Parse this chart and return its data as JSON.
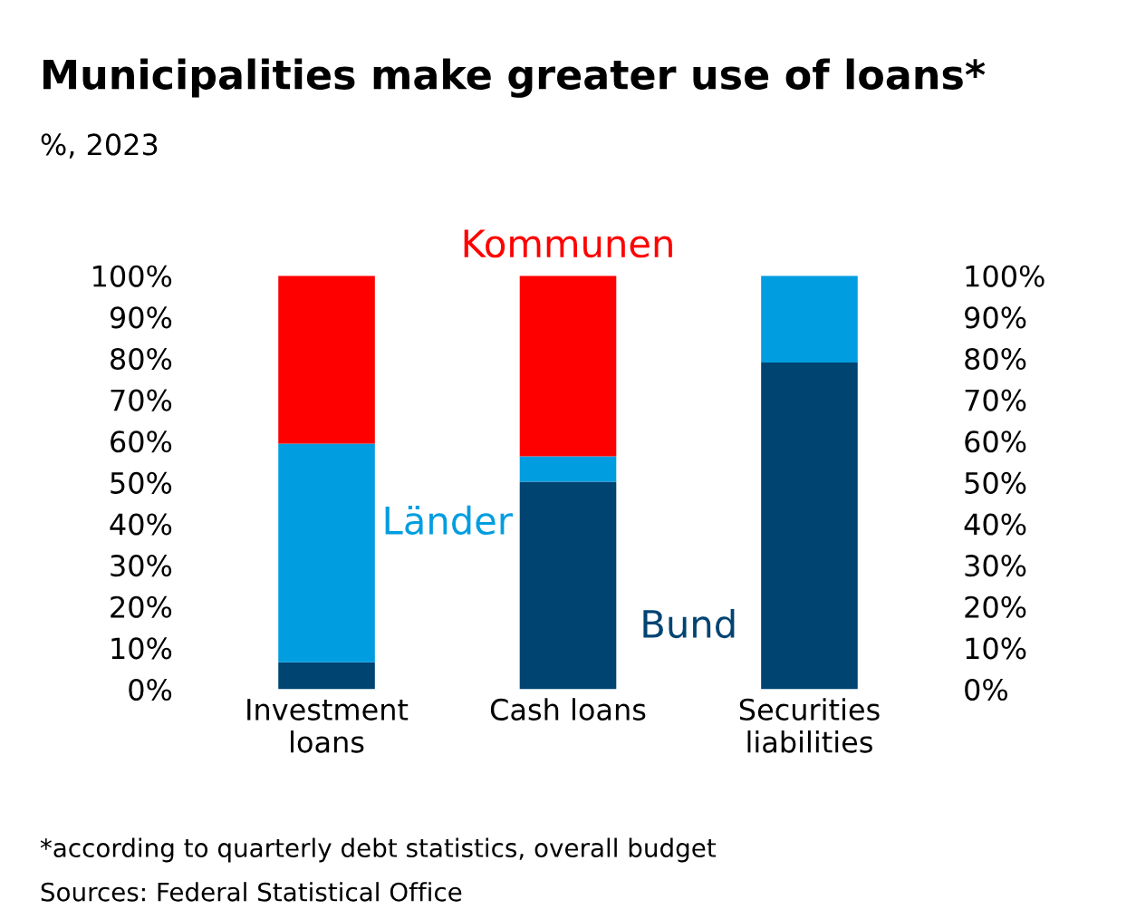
{
  "chart_data": {
    "type": "bar",
    "title": "Municipalities make greater use of loans*",
    "subtitle": "%, 2023",
    "categories": [
      "Investment\nloans",
      "Cash loans",
      "Securities\nliabilities"
    ],
    "stacked": true,
    "series": [
      {
        "name": "Bund",
        "color": "#004472",
        "values": [
          6.5,
          50.2,
          79
        ]
      },
      {
        "name": "Länder",
        "color": "#009de0",
        "values": [
          52.9,
          6.1,
          21
        ]
      },
      {
        "name": "Kommunen",
        "color": "#ff0000",
        "values": [
          40.6,
          43.7,
          0
        ]
      }
    ],
    "ylim": [
      0,
      100
    ],
    "yticks": [
      {
        "value": 0,
        "label": "0%"
      },
      {
        "value": 10,
        "label": "10%"
      },
      {
        "value": 20,
        "label": "20%"
      },
      {
        "value": 30,
        "label": "30%"
      },
      {
        "value": 40,
        "label": "40%"
      },
      {
        "value": 50,
        "label": "50%"
      },
      {
        "value": 60,
        "label": "60%"
      },
      {
        "value": 70,
        "label": "70%"
      },
      {
        "value": 80,
        "label": "80%"
      },
      {
        "value": 90,
        "label": "90%"
      },
      {
        "value": 100,
        "label": "100%"
      }
    ],
    "y2lim": [
      0,
      100
    ],
    "y2ticks": [
      {
        "value": 0,
        "label": "0%"
      },
      {
        "value": 10,
        "label": "10%"
      },
      {
        "value": 20,
        "label": "20%"
      },
      {
        "value": 30,
        "label": "30%"
      },
      {
        "value": 40,
        "label": "40%"
      },
      {
        "value": 50,
        "label": "50%"
      },
      {
        "value": 60,
        "label": "60%"
      },
      {
        "value": 70,
        "label": "70%"
      },
      {
        "value": 80,
        "label": "80%"
      },
      {
        "value": 90,
        "label": "90%"
      },
      {
        "value": 100,
        "label": "100%"
      }
    ],
    "grid": false,
    "legend": false,
    "annotations": [
      "*according to quarterly debt statistics, overall budget",
      "Sources: Federal Statistical Office"
    ]
  }
}
